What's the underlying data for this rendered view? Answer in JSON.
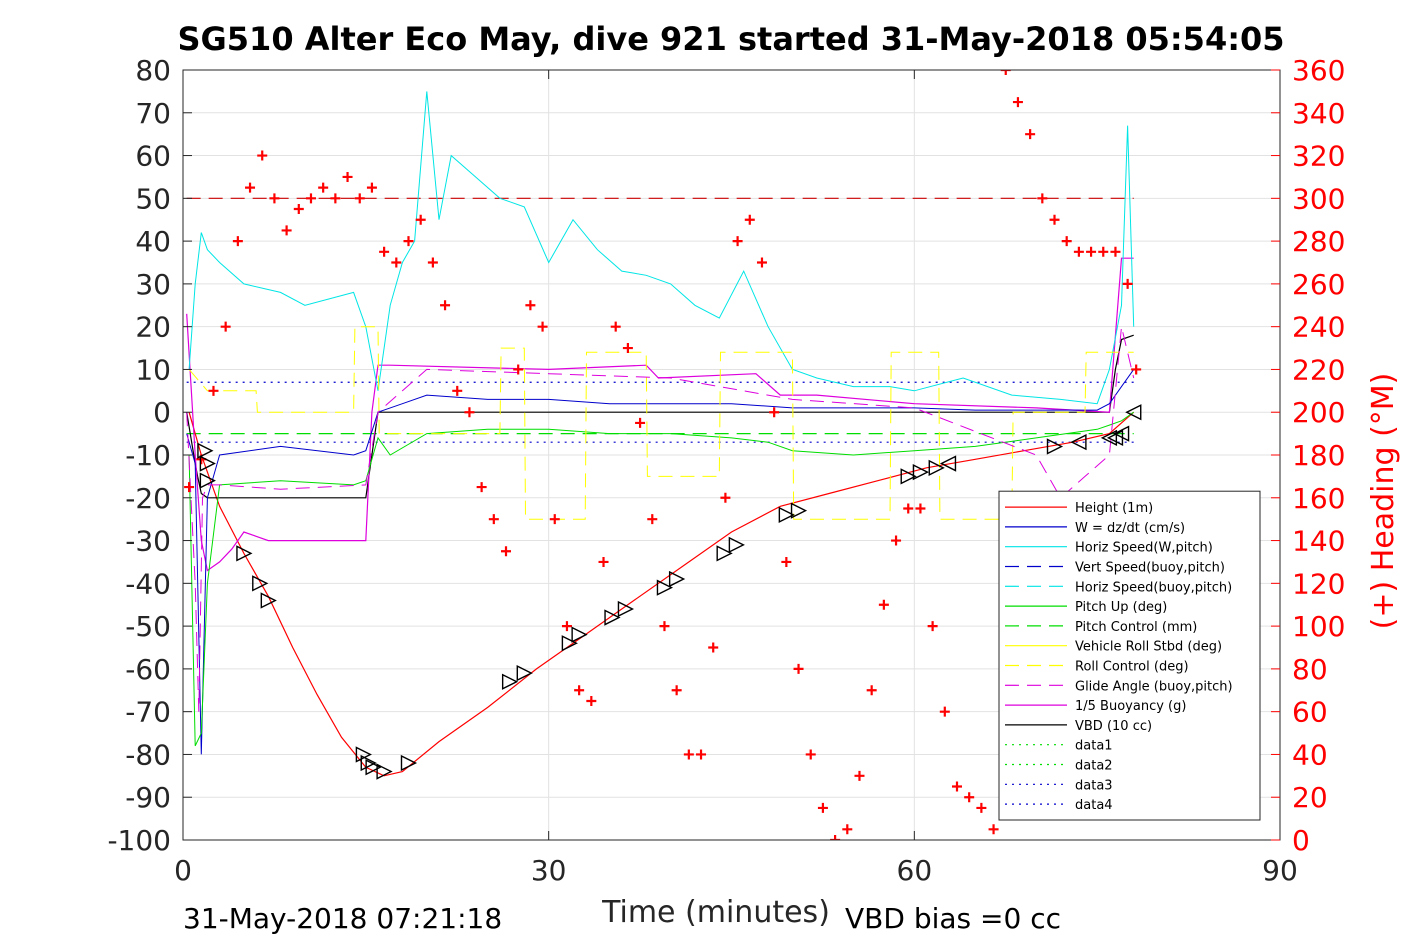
{
  "chart_data": {
    "type": "line",
    "title": "SG510 Alter Eco May, dive 921 started 31-May-2018 05:54:05",
    "xlabel": "Time (minutes)",
    "ylabel_right": "(+) Heading (°M)",
    "footer_left": "31-May-2018 07:21:18",
    "footer_right": "VBD bias =0 cc",
    "xlim": [
      0,
      90
    ],
    "ylim_left": [
      -100,
      80
    ],
    "ylim_right": [
      0,
      360
    ],
    "xticks": [
      0,
      30,
      60,
      90
    ],
    "yticks_left": [
      80,
      70,
      60,
      50,
      40,
      30,
      20,
      10,
      0,
      -10,
      -20,
      -30,
      -40,
      -50,
      -60,
      -70,
      -80,
      -90,
      -100
    ],
    "yticks_right": [
      360,
      340,
      320,
      300,
      280,
      260,
      240,
      220,
      200,
      180,
      160,
      140,
      120,
      100,
      80,
      60,
      40,
      20,
      0
    ],
    "grid": true,
    "legend_position": "bottom-right",
    "colors": {
      "height": "#ff0000",
      "w": "#0000cc",
      "horiz_speed": "#00e5e5",
      "pitch": "#00dd00",
      "roll": "#ffff00",
      "glide": "#dd00dd",
      "vbd": "#000000",
      "heading": "#ff0000"
    },
    "legend": [
      {
        "label": "Height (1m)",
        "color": "#ff0000",
        "style": "solid"
      },
      {
        "label": "W = dz/dt (cm/s)",
        "color": "#0000cc",
        "style": "solid"
      },
      {
        "label": "Horiz Speed(W,pitch)",
        "color": "#00e5e5",
        "style": "solid"
      },
      {
        "label": "Vert Speed(buoy,pitch)",
        "color": "#0000cc",
        "style": "dashed"
      },
      {
        "label": "Horiz Speed(buoy,pitch)",
        "color": "#00e5e5",
        "style": "dashed"
      },
      {
        "label": "Pitch Up (deg)",
        "color": "#00dd00",
        "style": "solid"
      },
      {
        "label": "Pitch Control (mm)",
        "color": "#00dd00",
        "style": "dashed"
      },
      {
        "label": "Vehicle Roll Stbd (deg)",
        "color": "#ffff00",
        "style": "solid"
      },
      {
        "label": "Roll Control (deg)",
        "color": "#ffff00",
        "style": "dashed"
      },
      {
        "label": "Glide Angle (buoy,pitch)",
        "color": "#dd00dd",
        "style": "dashed"
      },
      {
        "label": "1/5 Buoyancy (g)",
        "color": "#dd00dd",
        "style": "solid"
      },
      {
        "label": "VBD (10 cc)",
        "color": "#000000",
        "style": "solid"
      },
      {
        "label": "data1",
        "color": "#00dd00",
        "style": "dotted"
      },
      {
        "label": "data2",
        "color": "#00dd00",
        "style": "dotted"
      },
      {
        "label": "data3",
        "color": "#0000cc",
        "style": "dotted"
      },
      {
        "label": "data4",
        "color": "#0000cc",
        "style": "dotted"
      }
    ],
    "reference_lines": [
      {
        "name": "heading-target",
        "axis": "right",
        "y": 300,
        "color": "#cc0000",
        "style": "dashed"
      },
      {
        "name": "data3",
        "axis": "left",
        "y": 7,
        "color": "#0000cc",
        "style": "dotted"
      },
      {
        "name": "data4",
        "axis": "left",
        "y": -7,
        "color": "#0000cc",
        "style": "dotted"
      },
      {
        "name": "pitch-control",
        "axis": "left",
        "y": -5,
        "color": "#00dd00",
        "style": "dashed"
      }
    ],
    "series": [
      {
        "key": "height",
        "color": "#ff0000",
        "style": "solid",
        "width": 1.2,
        "x": [
          0.5,
          1.5,
          3,
          5,
          7,
          9,
          11,
          13,
          15,
          16.5,
          18,
          21,
          25,
          29,
          33,
          37,
          41,
          45,
          49,
          53,
          57,
          61,
          65,
          69,
          73,
          76,
          78
        ],
        "y": [
          0,
          -10,
          -22,
          -33,
          -43,
          -55,
          -66,
          -76,
          -83,
          -85,
          -84,
          -77,
          -69,
          -60,
          -52,
          -44,
          -36,
          -28,
          -22,
          -19,
          -16,
          -13,
          -11,
          -9,
          -7,
          -5,
          0
        ]
      },
      {
        "key": "vbd",
        "color": "#000000",
        "style": "solid",
        "width": 1.2,
        "x": [
          0.3,
          1,
          1.2,
          1.5,
          2,
          15,
          15.5,
          16,
          30,
          60,
          76,
          76.5,
          77,
          78
        ],
        "y": [
          0,
          -12,
          -15,
          -19,
          -20,
          -20,
          -10,
          0,
          0,
          0,
          0,
          10,
          17,
          18
        ]
      },
      {
        "key": "buoyancy",
        "color": "#dd00dd",
        "style": "solid",
        "width": 1.2,
        "x": [
          0.3,
          1,
          1.5,
          2,
          3,
          4,
          5,
          6,
          7,
          15,
          15.5,
          16,
          17,
          30,
          38,
          39,
          47,
          49,
          52,
          60,
          70,
          76,
          77,
          78
        ],
        "y": [
          23,
          -10,
          -30,
          -37,
          -35,
          -32,
          -28,
          -29,
          -30,
          -30,
          0,
          11,
          11,
          10,
          11,
          8,
          9,
          4,
          4,
          2,
          1,
          0,
          36,
          36
        ]
      },
      {
        "key": "w",
        "color": "#0000cc",
        "style": "solid",
        "width": 1,
        "x": [
          0.3,
          1,
          1.5,
          2,
          3,
          8,
          14,
          15,
          16,
          18,
          20,
          25,
          30,
          35,
          40,
          45,
          50,
          55,
          60,
          65,
          70,
          75,
          76,
          77,
          78
        ],
        "y": [
          -5,
          -12,
          -80,
          -20,
          -10,
          -8,
          -10,
          -9,
          0,
          2,
          4,
          3,
          3,
          2,
          2,
          2,
          1,
          1,
          1,
          0.5,
          0.5,
          0.5,
          2,
          6,
          10
        ]
      },
      {
        "key": "pitch",
        "color": "#00dd00",
        "style": "solid",
        "width": 1,
        "x": [
          0.5,
          1,
          1.5,
          2,
          3,
          8,
          14,
          15,
          16,
          17,
          20,
          25,
          30,
          35,
          40,
          45,
          48,
          50,
          55,
          60,
          65,
          70,
          75,
          76,
          77,
          78
        ],
        "y": [
          -10,
          -78,
          -75,
          -40,
          -17,
          -16,
          -17,
          -16,
          -6,
          -10,
          -5,
          -4,
          -4,
          -5,
          -5,
          -6,
          -7,
          -9,
          -10,
          -9,
          -8,
          -6,
          -4,
          -3,
          -2,
          0
        ]
      },
      {
        "key": "horiz_speed",
        "color": "#00e5e5",
        "style": "solid",
        "width": 1,
        "x": [
          0.5,
          1,
          1.5,
          2,
          3,
          5,
          8,
          10,
          14,
          15,
          16,
          17,
          18,
          19,
          20,
          21,
          22,
          24,
          26,
          28,
          30,
          32,
          34,
          36,
          38,
          40,
          42,
          44,
          46,
          48,
          50,
          52,
          55,
          58,
          60,
          64,
          68,
          72,
          75,
          76,
          77,
          77.5,
          78
        ],
        "y": [
          10,
          30,
          42,
          38,
          35,
          30,
          28,
          25,
          28,
          20,
          5,
          25,
          35,
          40,
          75,
          45,
          60,
          55,
          50,
          48,
          35,
          45,
          38,
          33,
          32,
          30,
          25,
          22,
          33,
          20,
          10,
          8,
          6,
          6,
          5,
          8,
          4,
          3,
          2,
          10,
          25,
          67,
          20
        ]
      },
      {
        "key": "roll",
        "color": "#ffff00",
        "style": "dashed",
        "width": 1,
        "x": [
          0.5,
          2,
          6,
          6.1,
          14,
          14.1,
          16,
          16.1,
          26,
          26.1,
          28,
          28.1,
          33,
          33.1,
          38,
          38.1,
          44,
          44.1,
          50,
          50.1,
          58,
          58.1,
          62,
          62.1,
          68,
          68.1,
          74,
          74.1,
          78
        ],
        "y": [
          10,
          5,
          5,
          0,
          0,
          20,
          20,
          -5,
          -5,
          15,
          15,
          -25,
          -25,
          14,
          14,
          -15,
          -15,
          14,
          14,
          -25,
          -25,
          14,
          14,
          -25,
          -25,
          0,
          0,
          14,
          14
        ]
      },
      {
        "key": "glide",
        "color": "#dd00dd",
        "style": "dashed",
        "width": 1,
        "x": [
          0.3,
          1,
          1.3,
          1.6,
          2,
          3,
          8,
          15,
          16,
          20,
          30,
          40,
          50,
          60,
          70,
          72,
          74,
          76,
          77,
          78
        ],
        "y": [
          0,
          -40,
          -70,
          -20,
          -17,
          -17,
          -18,
          -17,
          0,
          10,
          9,
          8,
          3,
          1,
          -10,
          -20,
          -15,
          -10,
          20,
          8
        ]
      },
      {
        "key": "heading",
        "color": "#ff0000",
        "style": "markers",
        "marker": "+",
        "axis": "right",
        "x": [
          0.5,
          1.5,
          2.5,
          3.5,
          4.5,
          5.5,
          6.5,
          7.5,
          8.5,
          9.5,
          10.5,
          11.5,
          12.5,
          13.5,
          14.5,
          15.5,
          16.5,
          17.5,
          18.5,
          19.5,
          20.5,
          21.5,
          22.5,
          23.5,
          24.5,
          25.5,
          26.5,
          27.5,
          28.5,
          29.5,
          30.5,
          31.5,
          32.5,
          33.5,
          34.5,
          35.5,
          36.5,
          37.5,
          38.5,
          39.5,
          40.5,
          41.5,
          42.5,
          43.5,
          44.5,
          45.5,
          46.5,
          47.5,
          48.5,
          49.5,
          50.5,
          51.5,
          52.5,
          53.5,
          54.5,
          55.5,
          56.5,
          57.5,
          58.5,
          59.5,
          60.5,
          61.5,
          62.5,
          63.5,
          64.5,
          65.5,
          66.5,
          67.5,
          68.5,
          69.5,
          70.5,
          71.5,
          72.5,
          73.5,
          74.5,
          75.5,
          76.5,
          77.5,
          78.2
        ],
        "y": [
          165,
          178,
          210,
          240,
          280,
          305,
          320,
          300,
          285,
          295,
          300,
          305,
          300,
          310,
          300,
          305,
          275,
          270,
          280,
          290,
          270,
          250,
          210,
          200,
          165,
          150,
          135,
          220,
          250,
          240,
          150,
          100,
          70,
          65,
          130,
          240,
          230,
          195,
          150,
          100,
          70,
          40,
          40,
          90,
          160,
          280,
          290,
          270,
          200,
          130,
          80,
          40,
          15,
          0,
          5,
          30,
          70,
          110,
          140,
          155,
          155,
          100,
          60,
          25,
          20,
          15,
          5,
          360,
          345,
          330,
          300,
          290,
          280,
          275,
          275,
          275,
          275,
          260,
          220
        ]
      }
    ],
    "waypoints": {
      "x": [
        1.8,
        2.0,
        2.0,
        5.0,
        6.3,
        7.0,
        14.8,
        15.2,
        15.6,
        16.5,
        18.5,
        26.8,
        28.0,
        31.7,
        32.5,
        35.2,
        36.3,
        39.5,
        40.5,
        44.4,
        45.4,
        49.5,
        50.5,
        59.5,
        60.5,
        61.8,
        62.8,
        71.5,
        73.5,
        76.0,
        76.5,
        77.0,
        78.0
      ],
      "y": [
        -9,
        -12,
        -16,
        -33,
        -40,
        -44,
        -80,
        -82,
        -83,
        -84,
        -82,
        -63,
        -61,
        -54,
        -52,
        -48,
        -46,
        -41,
        -39,
        -33,
        -31,
        -24,
        -23,
        -15,
        -14,
        -13,
        -12,
        -8,
        -7,
        -6,
        -6,
        -5,
        0
      ],
      "dir": [
        "r",
        "r",
        "r",
        "r",
        "r",
        "r",
        "r",
        "r",
        "r",
        "r",
        "r",
        "r",
        "r",
        "r",
        "r",
        "r",
        "r",
        "r",
        "r",
        "r",
        "r",
        "r",
        "r",
        "r",
        "r",
        "r",
        "l",
        "r",
        "l",
        "l",
        "l",
        "l",
        "l"
      ]
    }
  }
}
